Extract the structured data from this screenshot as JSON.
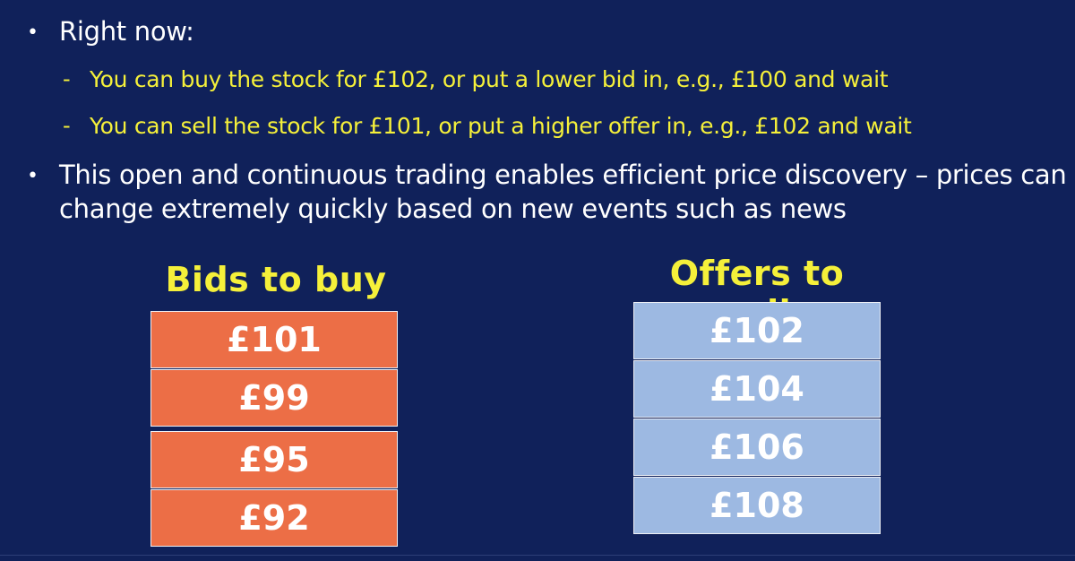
{
  "bullets": [
    {
      "text": "Right now:"
    },
    {
      "text": "This open and continuous trading enables efficient price discovery – prices can",
      "text2": "change extremely quickly based on new events such as news"
    }
  ],
  "sub_bullets": [
    {
      "text": "You can buy the stock for £102, or put a lower bid in, e.g., £100 and wait"
    },
    {
      "text": "You can sell the stock for £101, or put a higher offer in, e.g., £102 and wait"
    }
  ],
  "bids": {
    "heading": "Bids to buy",
    "values": [
      "£101",
      "£99",
      "£95",
      "£92"
    ],
    "color": "#ec6e46"
  },
  "offers": {
    "heading": "Offers to sell",
    "values": [
      "£102",
      "£104",
      "£106",
      "£108"
    ],
    "color": "#9db9e2"
  },
  "colors": {
    "background": "#10215a",
    "bullet_text": "#ffffff",
    "sub_bullet_text": "#f5f03a",
    "heading_text": "#f5f03a"
  },
  "symbols": {
    "bullet": "•",
    "dash": "-"
  }
}
